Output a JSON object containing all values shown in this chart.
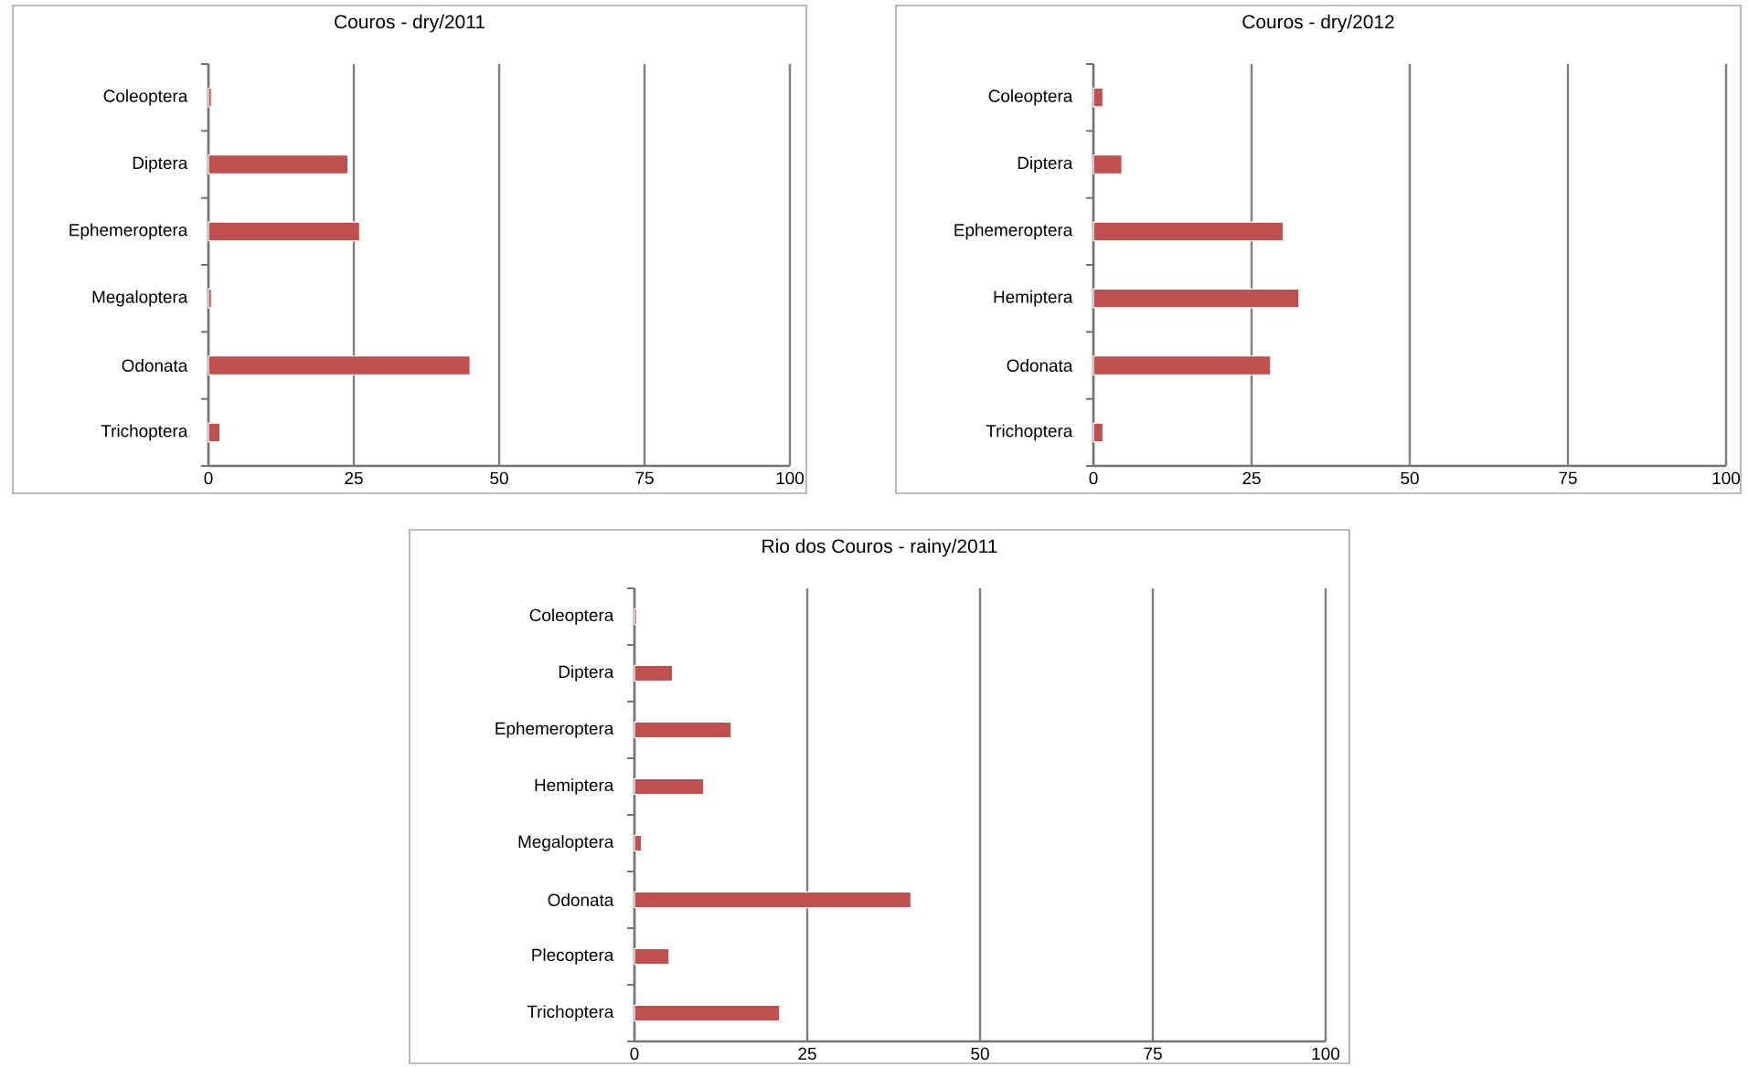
{
  "chart_data": [
    {
      "type": "bar",
      "orientation": "horizontal",
      "title": "Couros - dry/2011",
      "categories": [
        "Coleoptera",
        "Diptera",
        "Ephemeroptera",
        "Megaloptera",
        "Odonata",
        "Trichoptera"
      ],
      "values": [
        0.5,
        24,
        26,
        0.5,
        45,
        2
      ],
      "color": "#c0504d",
      "xlim": [
        0,
        100
      ],
      "xticks": [
        0,
        25,
        50,
        75,
        100
      ],
      "grid": "x"
    },
    {
      "type": "bar",
      "orientation": "horizontal",
      "title": "Couros - dry/2012",
      "categories": [
        "Coleoptera",
        "Diptera",
        "Ephemeroptera",
        "Hemiptera",
        "Odonata",
        "Trichoptera"
      ],
      "values": [
        1.5,
        4.5,
        30,
        32.5,
        28,
        1.5
      ],
      "color": "#c0504d",
      "xlim": [
        0,
        100
      ],
      "xticks": [
        0,
        25,
        50,
        75,
        100
      ],
      "grid": "x"
    },
    {
      "type": "bar",
      "orientation": "horizontal",
      "title": "Rio dos Couros - rainy/2011",
      "categories": [
        "Coleoptera",
        "Diptera",
        "Ephemeroptera",
        "Hemiptera",
        "Megaloptera",
        "Odonata",
        "Plecoptera",
        "Trichoptera"
      ],
      "values": [
        0.3,
        5.5,
        14,
        10,
        1,
        40,
        5,
        21
      ],
      "color": "#c0504d",
      "xlim": [
        0,
        100
      ],
      "xticks": [
        0,
        25,
        50,
        75,
        100
      ],
      "grid": "x"
    }
  ]
}
